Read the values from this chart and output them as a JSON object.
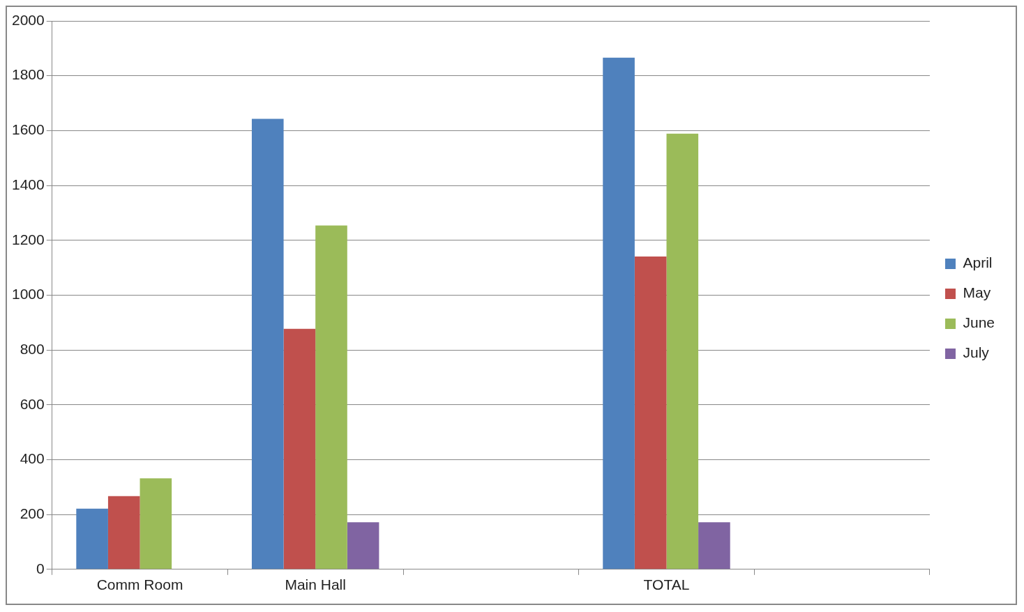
{
  "chart_data": {
    "type": "bar",
    "categories": [
      "Comm Room",
      "Main Hall",
      null,
      "TOTAL",
      null
    ],
    "series": [
      {
        "name": "April",
        "color": "#4f81bd",
        "values": [
          221,
          1643,
          null,
          1866,
          null
        ]
      },
      {
        "name": "May",
        "color": "#c0504d",
        "values": [
          267,
          877,
          null,
          1141,
          null
        ]
      },
      {
        "name": "June",
        "color": "#9bbb59",
        "values": [
          332,
          1254,
          null,
          1589,
          null
        ]
      },
      {
        "name": "July",
        "color": "#8064a2",
        "values": [
          null,
          172,
          null,
          172,
          null
        ]
      }
    ],
    "ylim": [
      0,
      2000
    ],
    "yticks": [
      0,
      200,
      400,
      600,
      800,
      1000,
      1200,
      1400,
      1600,
      1800,
      2000
    ],
    "grid": "y",
    "legend": "right"
  }
}
